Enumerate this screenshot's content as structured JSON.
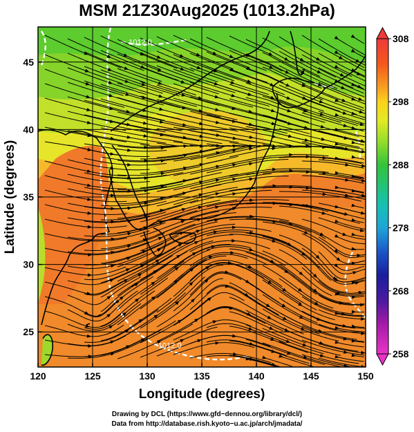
{
  "title": "MSM 21Z30Aug2025 (1013.2hPa)",
  "map": {
    "xlabel": "Longitude (degrees)",
    "ylabel": "Latitude  (degrees)",
    "lon_range": [
      120,
      150
    ],
    "lat_range": [
      22.4,
      47.6
    ],
    "lon_ticks": [
      120,
      125,
      130,
      135,
      140,
      145,
      150
    ],
    "lat_ticks": [
      25,
      30,
      35,
      40,
      45
    ],
    "grid": true,
    "field": "temperature (K) with wind streamlines",
    "contour_labels": [
      {
        "text": "1012.0",
        "lon": 128.3,
        "lat": 46.3
      },
      {
        "text": "1012.0",
        "lon": 131.0,
        "lat": 23.8
      }
    ]
  },
  "colorbar": {
    "min": 258,
    "max": 308,
    "labels": [
      "308",
      "298",
      "288",
      "278",
      "268",
      "258"
    ],
    "label_values": [
      308,
      298,
      288,
      278,
      268,
      258
    ],
    "colors": [
      "#ee2a6a",
      "#f4581c",
      "#f79a21",
      "#fbd21c",
      "#d9e826",
      "#7fd82a",
      "#33c43a",
      "#16c0a4",
      "#1ea5d8",
      "#1b53c6",
      "#1a1e9e",
      "#6a1aa6",
      "#c01aa6",
      "#e934c8"
    ]
  },
  "credits": {
    "line1": "Drawing by DCL (https://www.gfd−dennou.org/library/dcl/)",
    "line2": "Data from http://database.rish.kyoto−u.ac.jp/arch/jmadata/"
  }
}
